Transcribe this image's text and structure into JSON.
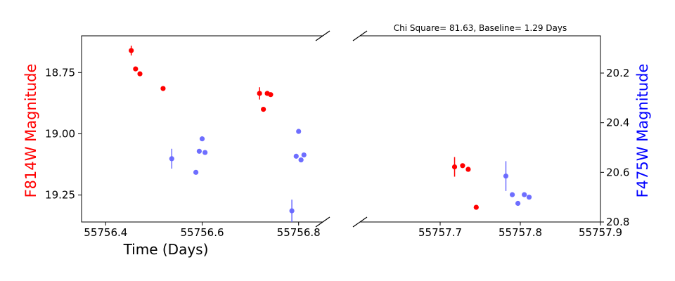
{
  "chart_data": {
    "type": "scatter",
    "title": "Chi Square= 81.63, Baseline= 1.29 Days",
    "xlabel": "Time (Days)",
    "ylabel_left": "F814W Magnitude",
    "ylabel_right": "F475W Magnitude",
    "colors": {
      "red_series": "#ff0000",
      "blue_series": "#6666ff",
      "left_label": "#ff0000",
      "right_label": "#0000ff"
    },
    "panels": [
      {
        "id": "left",
        "xlim": [
          55756.35,
          55756.85
        ],
        "xticks": [
          "55756.4",
          "55756.6",
          "55756.8"
        ],
        "xtick_values": [
          55756.4,
          55756.6,
          55756.8
        ]
      },
      {
        "id": "right",
        "xlim": [
          55757.6,
          55757.9
        ],
        "xticks": [
          "55757.7",
          "55757.8",
          "55757.9"
        ],
        "xtick_values": [
          55757.7,
          55757.8,
          55757.9
        ]
      }
    ],
    "y_left": {
      "inverted": true,
      "lim": [
        18.6,
        19.36
      ],
      "ticks": [
        "18.75",
        "19.00",
        "19.25"
      ],
      "tick_values": [
        18.75,
        19.0,
        19.25
      ]
    },
    "y_right": {
      "inverted": true,
      "lim": [
        20.05,
        20.8
      ],
      "ticks": [
        "20.2",
        "20.4",
        "20.6",
        "20.8"
      ],
      "tick_values": [
        20.2,
        20.4,
        20.6,
        20.8
      ]
    },
    "series": [
      {
        "band": "F814W",
        "axis": "left",
        "points": [
          {
            "x": 55756.453,
            "y": 18.66,
            "err": 0.02
          },
          {
            "x": 55756.462,
            "y": 18.735
          },
          {
            "x": 55756.471,
            "y": 18.755
          },
          {
            "x": 55756.519,
            "y": 18.815
          },
          {
            "x": 55756.719,
            "y": 18.835,
            "err": 0.025
          },
          {
            "x": 55756.727,
            "y": 18.9
          },
          {
            "x": 55756.735,
            "y": 18.835
          },
          {
            "x": 55756.742,
            "y": 18.84
          },
          {
            "x": 55757.718,
            "y": 19.135,
            "err": 0.04
          },
          {
            "x": 55757.728,
            "y": 19.13
          },
          {
            "x": 55757.735,
            "y": 19.145
          },
          {
            "x": 55757.745,
            "y": 19.3
          }
        ]
      },
      {
        "band": "F475W",
        "axis": "right",
        "points": [
          {
            "x": 55756.537,
            "y": 20.545,
            "err": 0.04
          },
          {
            "x": 55756.587,
            "y": 20.6
          },
          {
            "x": 55756.594,
            "y": 20.515
          },
          {
            "x": 55756.6,
            "y": 20.465
          },
          {
            "x": 55756.606,
            "y": 20.52
          },
          {
            "x": 55756.786,
            "y": 20.755,
            "err": 0.045
          },
          {
            "x": 55756.795,
            "y": 20.535
          },
          {
            "x": 55756.8,
            "y": 20.435
          },
          {
            "x": 55756.805,
            "y": 20.55
          },
          {
            "x": 55756.811,
            "y": 20.53
          },
          {
            "x": 55757.782,
            "y": 20.615,
            "err": 0.06
          },
          {
            "x": 55757.79,
            "y": 20.69
          },
          {
            "x": 55757.797,
            "y": 20.725
          },
          {
            "x": 55757.805,
            "y": 20.69
          },
          {
            "x": 55757.811,
            "y": 20.7
          }
        ]
      }
    ]
  }
}
